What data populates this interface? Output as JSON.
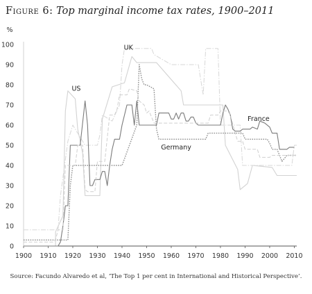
{
  "figure": {
    "label": "Figure 6:",
    "title": "Top marginal income tax rates, 1900–2011",
    "source": "Source: Facundo Alvaredo et al, ‘The Top 1 per cent in International and Historical Perspective’."
  },
  "chart_data": {
    "type": "line",
    "ylabel": "%",
    "xlabel": "",
    "xlim": [
      1900,
      2011
    ],
    "ylim": [
      0,
      100
    ],
    "xticks": [
      1900,
      1910,
      1920,
      1930,
      1940,
      1950,
      1960,
      1970,
      1980,
      1990,
      2000,
      2010
    ],
    "yticks": [
      0,
      10,
      20,
      30,
      40,
      50,
      60,
      70,
      80,
      90,
      100
    ],
    "grid": false,
    "series": [
      {
        "name": "US",
        "color": "#d2d2d2",
        "style": "solid",
        "points": [
          [
            1900,
            0
          ],
          [
            1913,
            0
          ],
          [
            1913,
            7
          ],
          [
            1916,
            15
          ],
          [
            1917,
            67
          ],
          [
            1918,
            77
          ],
          [
            1921,
            73
          ],
          [
            1922,
            58
          ],
          [
            1924,
            46
          ],
          [
            1925,
            25
          ],
          [
            1931,
            25
          ],
          [
            1932,
            63
          ],
          [
            1936,
            79
          ],
          [
            1941,
            81
          ],
          [
            1944,
            94
          ],
          [
            1946,
            91
          ],
          [
            1951,
            91
          ],
          [
            1954,
            91
          ],
          [
            1964,
            77
          ],
          [
            1965,
            70
          ],
          [
            1981,
            70
          ],
          [
            1982,
            50
          ],
          [
            1987,
            38
          ],
          [
            1988,
            28
          ],
          [
            1991,
            31
          ],
          [
            1993,
            40
          ],
          [
            2001,
            39
          ],
          [
            2003,
            35
          ],
          [
            2011,
            35
          ]
        ]
      },
      {
        "name": "UK",
        "color": "#d7d7d7",
        "style": "dash-dot",
        "points": [
          [
            1900,
            8
          ],
          [
            1909,
            8
          ],
          [
            1910,
            8
          ],
          [
            1914,
            8
          ],
          [
            1915,
            25
          ],
          [
            1918,
            52
          ],
          [
            1920,
            60
          ],
          [
            1925,
            50
          ],
          [
            1930,
            50
          ],
          [
            1931,
            55
          ],
          [
            1932,
            65
          ],
          [
            1936,
            62
          ],
          [
            1939,
            70
          ],
          [
            1940,
            90
          ],
          [
            1941,
            98
          ],
          [
            1952,
            98
          ],
          [
            1953,
            95
          ],
          [
            1960,
            90
          ],
          [
            1965,
            90
          ],
          [
            1970,
            90
          ],
          [
            1971,
            90
          ],
          [
            1973,
            75
          ],
          [
            1974,
            98
          ],
          [
            1979,
            98
          ],
          [
            1980,
            60
          ],
          [
            1988,
            60
          ],
          [
            1989,
            40
          ],
          [
            2009,
            40
          ],
          [
            2010,
            50
          ],
          [
            2011,
            50
          ]
        ]
      },
      {
        "name": "France",
        "color": "#7a7a7a",
        "style": "solid",
        "points": [
          [
            1900,
            0
          ],
          [
            1914,
            0
          ],
          [
            1915,
            2
          ],
          [
            1916,
            10
          ],
          [
            1917,
            20
          ],
          [
            1918,
            20
          ],
          [
            1919,
            50
          ],
          [
            1923,
            50
          ],
          [
            1925,
            72
          ],
          [
            1926,
            60
          ],
          [
            1927,
            30
          ],
          [
            1928,
            30
          ],
          [
            1929,
            33
          ],
          [
            1931,
            33
          ],
          [
            1932,
            37
          ],
          [
            1933,
            37
          ],
          [
            1934,
            30
          ],
          [
            1935,
            40
          ],
          [
            1936,
            48
          ],
          [
            1937,
            53
          ],
          [
            1939,
            53
          ],
          [
            1940,
            60
          ],
          [
            1942,
            70
          ],
          [
            1944,
            70
          ],
          [
            1945,
            60
          ],
          [
            1946,
            72
          ],
          [
            1947,
            60
          ],
          [
            1954,
            60
          ],
          [
            1955,
            66
          ],
          [
            1959,
            66
          ],
          [
            1960,
            63
          ],
          [
            1961,
            63
          ],
          [
            1962,
            66
          ],
          [
            1963,
            63
          ],
          [
            1964,
            66
          ],
          [
            1965,
            66
          ],
          [
            1966,
            62
          ],
          [
            1967,
            62
          ],
          [
            1968,
            64
          ],
          [
            1969,
            64
          ],
          [
            1970,
            61
          ],
          [
            1971,
            60
          ],
          [
            1980,
            60
          ],
          [
            1981,
            66
          ],
          [
            1982,
            70
          ],
          [
            1983,
            68
          ],
          [
            1984,
            65
          ],
          [
            1985,
            58
          ],
          [
            1986,
            57
          ],
          [
            1988,
            57
          ],
          [
            1989,
            58
          ],
          [
            1992,
            58
          ],
          [
            1993,
            59
          ],
          [
            1995,
            58
          ],
          [
            1996,
            62
          ],
          [
            1998,
            61
          ],
          [
            2000,
            59
          ],
          [
            2001,
            56
          ],
          [
            2003,
            56
          ],
          [
            2004,
            48
          ],
          [
            2007,
            48
          ],
          [
            2008,
            49
          ],
          [
            2009,
            49
          ],
          [
            2010,
            49
          ]
        ]
      },
      {
        "name": "Germany",
        "color": "#8f8f8f",
        "style": "dotted",
        "points": [
          [
            1900,
            3
          ],
          [
            1910,
            3
          ],
          [
            1918,
            3
          ],
          [
            1919,
            30
          ],
          [
            1920,
            40
          ],
          [
            1925,
            40
          ],
          [
            1940,
            40
          ],
          [
            1946,
            60
          ],
          [
            1947,
            90
          ],
          [
            1948,
            83
          ],
          [
            1949,
            80
          ],
          [
            1950,
            80
          ],
          [
            1953,
            78
          ],
          [
            1954,
            58
          ],
          [
            1955,
            53
          ],
          [
            1958,
            53
          ],
          [
            1960,
            53
          ],
          [
            1974,
            53
          ],
          [
            1975,
            56
          ],
          [
            1989,
            56
          ],
          [
            1990,
            53
          ],
          [
            1999,
            53
          ],
          [
            2000,
            51
          ],
          [
            2001,
            48
          ],
          [
            2003,
            48
          ],
          [
            2004,
            45
          ],
          [
            2005,
            42
          ],
          [
            2007,
            45
          ],
          [
            2011,
            45
          ]
        ]
      },
      {
        "name": "",
        "color": "#cfcfcf",
        "style": "dashed",
        "points": [
          [
            1900,
            2
          ],
          [
            1912,
            2
          ],
          [
            1913,
            3
          ],
          [
            1914,
            8
          ],
          [
            1916,
            8
          ],
          [
            1917,
            40
          ],
          [
            1921,
            40
          ],
          [
            1922,
            50
          ],
          [
            1924,
            50
          ],
          [
            1925,
            28
          ],
          [
            1926,
            27
          ],
          [
            1929,
            27
          ],
          [
            1930,
            42
          ],
          [
            1933,
            42
          ],
          [
            1935,
            65
          ],
          [
            1937,
            65
          ],
          [
            1938,
            68
          ],
          [
            1939,
            75
          ],
          [
            1942,
            75
          ],
          [
            1943,
            78
          ],
          [
            1946,
            77
          ],
          [
            1947,
            72
          ],
          [
            1949,
            70
          ],
          [
            1950,
            66
          ],
          [
            1951,
            67
          ],
          [
            1952,
            64
          ],
          [
            1953,
            61
          ],
          [
            1975,
            61
          ],
          [
            1976,
            65
          ],
          [
            1979,
            65
          ],
          [
            1980,
            67
          ],
          [
            1983,
            67
          ],
          [
            1984,
            65
          ],
          [
            1986,
            56
          ],
          [
            1987,
            52
          ],
          [
            1989,
            52
          ],
          [
            1990,
            48
          ],
          [
            1995,
            48
          ],
          [
            1996,
            44
          ],
          [
            2000,
            44
          ],
          [
            2001,
            45
          ],
          [
            2011,
            45
          ]
        ]
      }
    ],
    "annotations": [
      {
        "text": "US",
        "x": 1921.4,
        "y": 77
      },
      {
        "text": "UK",
        "x": 1942.6,
        "y": 97.5
      },
      {
        "text": "France",
        "x": 1995.5,
        "y": 62
      },
      {
        "text": "Germany",
        "x": 1962,
        "y": 48
      }
    ]
  }
}
